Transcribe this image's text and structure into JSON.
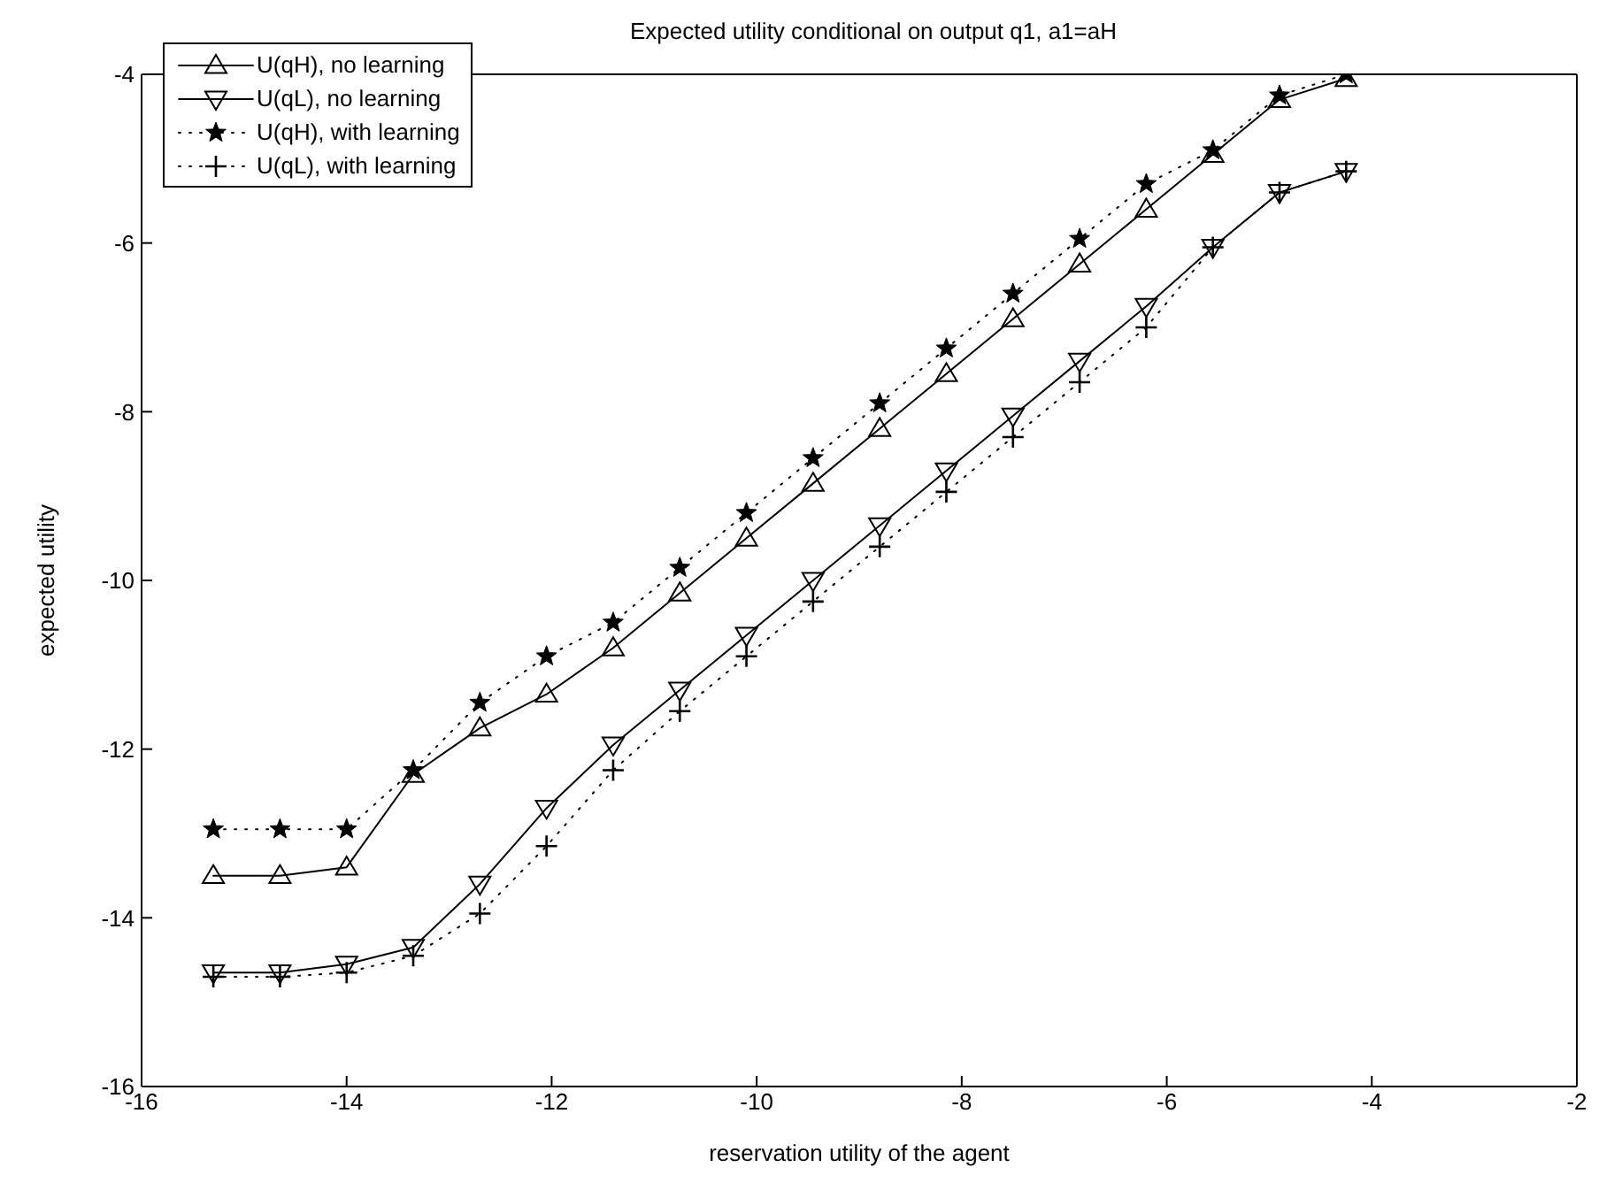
{
  "chart_data": {
    "type": "line",
    "title": "Expected utility conditional on output q1, a1=aH",
    "xlabel": "reservation utility of the agent",
    "ylabel": "expected utility",
    "x": [
      -15.3,
      -14.65,
      -14.0,
      -13.35,
      -12.7,
      -12.05,
      -11.4,
      -10.75,
      -10.1,
      -9.45,
      -8.8,
      -8.15,
      -7.5,
      -6.85,
      -6.2,
      -5.55,
      -4.9,
      -4.25
    ],
    "series": [
      {
        "name": "U(qH), no learning",
        "color": "#000000",
        "marker": "triangle",
        "line_style": "solid",
        "values": [
          -13.5,
          -13.5,
          -13.4,
          -12.3,
          -11.75,
          -11.35,
          -10.8,
          -10.15,
          -9.5,
          -8.85,
          -8.2,
          -7.55,
          -6.9,
          -6.25,
          -5.6,
          -4.95,
          -4.3,
          -4.05
        ]
      },
      {
        "name": "U(qL), no learning",
        "color": "#000000",
        "marker": "triangle-down",
        "line_style": "solid",
        "values": [
          -14.65,
          -14.65,
          -14.55,
          -14.35,
          -13.6,
          -12.7,
          -11.95,
          -11.3,
          -10.65,
          -10.0,
          -9.35,
          -8.7,
          -8.05,
          -7.4,
          -6.75,
          -6.05,
          -5.4,
          -5.15
        ]
      },
      {
        "name": "U(qH), with learning",
        "color": "#000000",
        "marker": "star",
        "line_style": "dotted",
        "values": [
          -12.95,
          -12.95,
          -12.95,
          -12.25,
          -11.45,
          -10.9,
          -10.5,
          -9.85,
          -9.2,
          -8.55,
          -7.9,
          -7.25,
          -6.6,
          -5.95,
          -5.3,
          -4.9,
          -4.25,
          -4.0
        ]
      },
      {
        "name": "U(qL), with learning",
        "color": "#000000",
        "marker": "cross",
        "line_style": "dotted",
        "values": [
          -14.7,
          -14.7,
          -14.65,
          -14.45,
          -13.95,
          -13.15,
          -12.25,
          -11.55,
          -10.9,
          -10.25,
          -9.6,
          -8.95,
          -8.3,
          -7.65,
          -7.0,
          -6.05,
          -5.4,
          -5.15
        ]
      }
    ],
    "xlim": [
      -16,
      -2
    ],
    "xticks": [
      -16,
      -14,
      -12,
      -10,
      -8,
      -6,
      -4,
      -2
    ],
    "ylim": [
      -16,
      -4
    ],
    "yticks": [
      -16,
      -14,
      -12,
      -10,
      -8,
      -6,
      -4
    ],
    "grid": false,
    "legend": "top left"
  }
}
